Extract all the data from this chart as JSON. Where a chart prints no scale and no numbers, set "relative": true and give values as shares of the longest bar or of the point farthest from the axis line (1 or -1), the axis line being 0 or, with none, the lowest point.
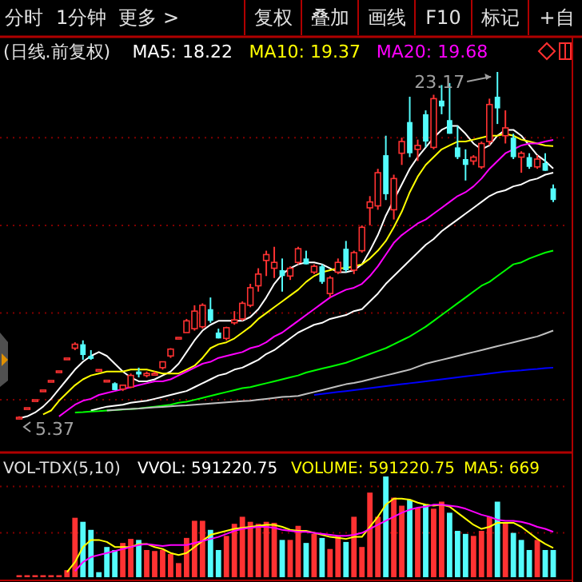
{
  "chart_data": [
    {
      "type": "candlestick",
      "title": "(日线.前复权)",
      "legend": "top left",
      "grid": "y",
      "categories": [
        null,
        null,
        null,
        null,
        null,
        null,
        null,
        null,
        null,
        null,
        null,
        null,
        null,
        null,
        null,
        null,
        null,
        null,
        null,
        null,
        null,
        null,
        null,
        null,
        null,
        null,
        null,
        null,
        null,
        null,
        null,
        null,
        null,
        null,
        null,
        null,
        null,
        null,
        null,
        null,
        null,
        null,
        null,
        null,
        null,
        null,
        null,
        null,
        null,
        null,
        null,
        null,
        null,
        null,
        null,
        null,
        null,
        null,
        null,
        null,
        null,
        null,
        null,
        null,
        null,
        null,
        null,
        null
      ],
      "yticks": [
        {
          "value": 6.35,
          "label": null
        },
        {
          "value": 10.8,
          "label": null
        },
        {
          "value": 15.3,
          "label": null
        },
        {
          "value": 19.8,
          "label": null
        }
      ],
      "ohlc": [
        [
          5.4,
          5.5,
          5.37,
          5.45
        ],
        [
          5.94,
          5.94,
          5.94,
          5.94
        ],
        [
          6.35,
          6.35,
          6.35,
          6.35
        ],
        [
          6.85,
          6.85,
          6.85,
          6.85
        ],
        [
          7.34,
          7.34,
          7.34,
          7.34
        ],
        [
          7.83,
          7.83,
          7.83,
          7.83
        ],
        [
          8.49,
          8.49,
          8.49,
          8.49
        ],
        [
          9.0,
          9.3,
          8.9,
          9.2
        ],
        [
          9.2,
          9.4,
          8.4,
          8.65
        ],
        [
          8.6,
          8.9,
          8.4,
          8.45
        ],
        [
          7.9,
          7.9,
          7.9,
          7.9
        ],
        [
          7.35,
          7.35,
          7.35,
          7.35
        ],
        [
          7.2,
          7.25,
          6.85,
          6.85
        ],
        [
          6.9,
          7.1,
          6.8,
          7.1
        ],
        [
          7.0,
          7.7,
          6.95,
          7.6
        ],
        [
          7.8,
          8.0,
          7.5,
          7.65
        ],
        [
          7.6,
          7.8,
          7.5,
          7.7
        ],
        [
          7.7,
          7.8,
          7.6,
          7.7
        ],
        [
          8.0,
          8.3,
          7.9,
          8.3
        ],
        [
          8.6,
          9.0,
          8.5,
          8.95
        ],
        [
          9.55,
          9.55,
          9.55,
          9.55
        ],
        [
          9.8,
          10.5,
          9.8,
          10.4
        ],
        [
          10.0,
          11.2,
          9.9,
          10.9
        ],
        [
          10.1,
          11.3,
          10.0,
          11.2
        ],
        [
          11.0,
          11.6,
          10.3,
          10.4
        ],
        [
          9.8,
          10.0,
          9.5,
          9.5
        ],
        [
          9.5,
          10.1,
          9.4,
          10.05
        ],
        [
          10.3,
          10.9,
          10.2,
          10.45
        ],
        [
          10.5,
          11.4,
          10.4,
          11.3
        ],
        [
          11.2,
          12.3,
          11.1,
          12.1
        ],
        [
          12.2,
          13.1,
          11.9,
          12.8
        ],
        [
          13.5,
          14.0,
          12.7,
          13.8
        ],
        [
          13.1,
          14.2,
          12.6,
          13.4
        ],
        [
          13.0,
          13.6,
          11.9,
          12.7
        ],
        [
          12.7,
          13.2,
          12.5,
          13.1
        ],
        [
          13.4,
          14.2,
          13.3,
          14.1
        ],
        [
          13.6,
          14.0,
          13.3,
          13.3
        ],
        [
          12.9,
          13.3,
          12.8,
          13.2
        ],
        [
          13.2,
          13.3,
          12.3,
          12.4
        ],
        [
          11.8,
          12.7,
          11.6,
          12.6
        ],
        [
          12.9,
          13.6,
          12.8,
          13.4
        ],
        [
          14.1,
          14.5,
          12.9,
          13.0
        ],
        [
          13.0,
          14.0,
          12.8,
          13.9
        ],
        [
          14.0,
          15.3,
          13.9,
          15.2
        ],
        [
          16.2,
          16.8,
          15.3,
          16.5
        ],
        [
          16.3,
          18.2,
          16.1,
          18.0
        ],
        [
          18.9,
          19.9,
          16.6,
          16.9
        ],
        [
          16.1,
          17.9,
          15.6,
          17.7
        ],
        [
          19.0,
          19.8,
          18.4,
          19.6
        ],
        [
          20.6,
          21.9,
          18.8,
          19.0
        ],
        [
          19.2,
          19.7,
          18.6,
          19.4
        ],
        [
          21.0,
          21.2,
          19.3,
          19.6
        ],
        [
          19.3,
          22.0,
          19.2,
          21.8
        ],
        [
          21.7,
          22.5,
          21.0,
          21.4
        ],
        [
          20.7,
          22.6,
          20.0,
          20.0
        ],
        [
          19.3,
          20.4,
          18.7,
          18.8
        ],
        [
          18.7,
          19.2,
          17.6,
          18.4
        ],
        [
          18.6,
          18.9,
          18.4,
          18.8
        ],
        [
          18.3,
          19.6,
          18.2,
          19.5
        ],
        [
          19.6,
          21.8,
          19.4,
          21.5
        ],
        [
          21.9,
          23.17,
          20.5,
          21.3
        ],
        [
          19.9,
          21.2,
          19.5,
          20.3
        ],
        [
          19.8,
          20.0,
          18.7,
          18.8
        ],
        [
          18.8,
          19.1,
          18.0,
          19.0
        ],
        [
          18.8,
          19.0,
          18.2,
          18.3
        ],
        [
          18.3,
          18.9,
          18.2,
          18.7
        ],
        [
          18.5,
          19.0,
          18.1,
          18.1
        ],
        [
          17.2,
          17.4,
          16.5,
          16.6
        ]
      ],
      "series": [
        {
          "type": "line",
          "name": "MA5: 18.22",
          "color": "#ffffff",
          "values": [
            5.4,
            5.5,
            5.7,
            6.0,
            6.4,
            6.9,
            7.4,
            7.9,
            8.3,
            8.6,
            8.8,
            8.6,
            8.2,
            7.8,
            7.5,
            7.3,
            7.3,
            7.4,
            7.6,
            7.8,
            8.2,
            8.8,
            9.4,
            9.9,
            10.2,
            10.4,
            10.4,
            10.4,
            10.4,
            10.6,
            11.0,
            11.6,
            12.3,
            12.8,
            13.1,
            13.3,
            13.4,
            13.4,
            13.3,
            13.1,
            12.9,
            12.9,
            13.0,
            13.3,
            14.0,
            14.8,
            15.8,
            16.6,
            17.4,
            18.2,
            18.8,
            19.3,
            19.8,
            20.2,
            20.4,
            20.4,
            20.0,
            19.5,
            19.2,
            19.4,
            19.9,
            20.2,
            20.2,
            19.9,
            19.4,
            18.9,
            18.6,
            18.22
          ]
        },
        {
          "type": "line",
          "name": "MA10: 19.37",
          "color": "#ffff00",
          "values": [
            null,
            null,
            null,
            5.6,
            5.8,
            6.3,
            6.7,
            7.1,
            7.4,
            7.6,
            7.7,
            7.8,
            7.8,
            7.8,
            7.9,
            7.9,
            7.9,
            7.8,
            7.7,
            7.7,
            7.7,
            7.9,
            8.1,
            8.5,
            9.0,
            9.2,
            9.3,
            9.5,
            9.8,
            10.1,
            10.5,
            10.8,
            11.1,
            11.4,
            11.7,
            12.0,
            12.4,
            12.7,
            12.9,
            13.0,
            13.1,
            13.1,
            13.2,
            13.3,
            13.6,
            14.0,
            14.5,
            15.2,
            16.0,
            17.0,
            17.8,
            18.4,
            18.8,
            19.2,
            19.4,
            19.6,
            19.6,
            19.7,
            19.8,
            19.9,
            19.9,
            20.0,
            19.9,
            19.7,
            19.6,
            19.5,
            19.4,
            19.37
          ]
        },
        {
          "type": "line",
          "name": "MA20: 19.68",
          "color": "#ff00ff",
          "values": [
            null,
            null,
            null,
            null,
            null,
            5.5,
            5.8,
            6.1,
            6.3,
            6.4,
            6.6,
            6.7,
            6.8,
            6.9,
            7.0,
            7.1,
            7.2,
            7.3,
            7.3,
            7.4,
            7.6,
            7.8,
            8.0,
            8.2,
            8.3,
            8.5,
            8.6,
            8.7,
            8.8,
            9.0,
            9.1,
            9.3,
            9.6,
            9.8,
            10.1,
            10.4,
            10.7,
            11.0,
            11.3,
            11.6,
            11.8,
            12.0,
            12.1,
            12.3,
            12.7,
            13.2,
            13.8,
            14.4,
            14.8,
            15.1,
            15.4,
            15.6,
            15.9,
            16.2,
            16.5,
            16.8,
            17.0,
            17.3,
            17.7,
            18.2,
            18.6,
            19.0,
            19.2,
            19.4,
            19.5,
            19.5,
            19.6,
            19.68
          ]
        },
        {
          "type": "line",
          "color": "#ffffff",
          "values": [
            null,
            null,
            null,
            null,
            null,
            null,
            null,
            null,
            null,
            5.8,
            5.9,
            6.0,
            6.05,
            6.1,
            6.2,
            6.25,
            6.3,
            6.4,
            6.5,
            6.6,
            6.7,
            6.8,
            7.0,
            7.2,
            7.4,
            7.6,
            7.7,
            7.9,
            8.0,
            8.2,
            8.4,
            8.7,
            8.9,
            9.2,
            9.5,
            9.8,
            10.0,
            10.2,
            10.3,
            10.5,
            10.6,
            10.7,
            10.9,
            11.0,
            11.4,
            11.8,
            12.3,
            12.7,
            13.1,
            13.5,
            13.9,
            14.3,
            14.6,
            15.0,
            15.3,
            15.6,
            15.9,
            16.2,
            16.5,
            16.8,
            17.0,
            17.1,
            17.3,
            17.4,
            17.6,
            17.7,
            17.9,
            18.0
          ]
        },
        {
          "type": "line",
          "color": "#00ff00",
          "values": [
            null,
            null,
            null,
            null,
            null,
            null,
            null,
            5.7,
            5.72,
            5.75,
            5.77,
            5.8,
            5.82,
            5.85,
            5.87,
            5.9,
            5.95,
            6.0,
            6.05,
            6.1,
            6.2,
            6.25,
            6.35,
            6.45,
            6.55,
            6.65,
            6.75,
            6.85,
            6.95,
            7.0,
            7.1,
            7.2,
            7.3,
            7.4,
            7.5,
            7.6,
            7.75,
            7.85,
            7.95,
            8.05,
            8.15,
            8.25,
            8.4,
            8.55,
            8.7,
            8.85,
            9.0,
            9.2,
            9.4,
            9.6,
            9.85,
            10.1,
            10.4,
            10.7,
            11.0,
            11.3,
            11.6,
            11.9,
            12.2,
            12.4,
            12.7,
            13.0,
            13.3,
            13.4,
            13.6,
            13.75,
            13.9,
            14.0
          ]
        },
        {
          "type": "line",
          "color": "#c0c0c0",
          "values": [
            null,
            null,
            null,
            null,
            null,
            null,
            null,
            null,
            null,
            null,
            null,
            5.8,
            5.83,
            5.86,
            5.88,
            5.9,
            5.93,
            5.96,
            5.99,
            6.02,
            6.05,
            6.07,
            6.1,
            6.13,
            6.16,
            6.19,
            6.22,
            6.25,
            6.28,
            6.3,
            6.35,
            6.4,
            6.45,
            6.5,
            6.52,
            6.55,
            6.65,
            6.75,
            6.85,
            6.95,
            7.05,
            7.15,
            7.22,
            7.3,
            7.4,
            7.5,
            7.6,
            7.7,
            7.8,
            7.9,
            8.05,
            8.2,
            8.3,
            8.4,
            8.5,
            8.6,
            8.7,
            8.8,
            8.9,
            9.0,
            9.1,
            9.2,
            9.3,
            9.4,
            9.5,
            9.6,
            9.75,
            9.9
          ]
        },
        {
          "type": "line",
          "color": "#0000ff",
          "values": [
            null,
            null,
            null,
            null,
            null,
            null,
            null,
            null,
            null,
            null,
            null,
            null,
            null,
            null,
            null,
            null,
            null,
            null,
            null,
            null,
            null,
            null,
            null,
            null,
            null,
            null,
            null,
            null,
            null,
            null,
            null,
            null,
            null,
            null,
            null,
            null,
            null,
            6.6,
            6.65,
            6.7,
            6.75,
            6.8,
            6.85,
            6.9,
            6.95,
            7.0,
            7.05,
            7.1,
            7.15,
            7.2,
            7.25,
            7.3,
            7.35,
            7.4,
            7.45,
            7.5,
            7.55,
            7.6,
            7.65,
            7.7,
            7.75,
            7.8,
            7.83,
            7.86,
            7.9,
            7.93,
            7.97,
            8.0
          ]
        }
      ],
      "annotations": [
        "分时",
        "1分钟",
        "更多 >",
        "复权",
        "叠加",
        "画线",
        "F10",
        "标记",
        "+自",
        "23.17",
        "5.37"
      ]
    },
    {
      "type": "bar",
      "relative": true,
      "title": "VOL-TDX(5,10)",
      "categories": [
        null,
        null,
        null,
        null,
        null,
        null,
        null,
        null,
        null,
        null,
        null,
        null,
        null,
        null,
        null,
        null,
        null,
        null,
        null,
        null,
        null,
        null,
        null,
        null,
        null,
        null,
        null,
        null,
        null,
        null,
        null,
        null,
        null,
        null,
        null,
        null,
        null,
        null,
        null,
        null,
        null,
        null,
        null,
        null,
        null,
        null,
        null,
        null,
        null,
        null,
        null,
        null,
        null,
        null,
        null,
        null,
        null,
        null,
        null,
        null,
        null,
        null,
        null,
        null,
        null,
        null,
        null,
        null
      ],
      "ref_lines": [
        {
          "axis": "y",
          "value": 0.44,
          "color": "#800000",
          "line_style": "dotted"
        },
        {
          "axis": "y",
          "value": 0.9,
          "color": "#800000",
          "line_style": "dotted"
        }
      ],
      "series": [
        {
          "type": "bar",
          "values": [
            0.02,
            0.02,
            0.02,
            0.02,
            0.02,
            0.02,
            0.07,
            0.59,
            0.55,
            0.47,
            0.05,
            0.3,
            0.27,
            0.34,
            0.38,
            0.37,
            0.27,
            0.26,
            0.27,
            0.23,
            0.14,
            0.39,
            0.56,
            0.56,
            0.47,
            0.27,
            0.41,
            0.53,
            0.6,
            0.55,
            0.53,
            0.55,
            0.54,
            0.37,
            0.37,
            0.51,
            0.34,
            0.43,
            0.39,
            0.28,
            0.41,
            0.35,
            0.6,
            0.3,
            0.84,
            0.6,
            1,
            0.79,
            0.71,
            0.77,
            0.69,
            0.72,
            0.68,
            0.75,
            0.64,
            0.46,
            0.43,
            0.41,
            0.46,
            0.6,
            0.75,
            0.54,
            0.44,
            0.37,
            0.27,
            0.37,
            0.27,
            0.27
          ],
          "colors": [
            "#ff3232",
            "#ff3232",
            "#ff3232",
            "#ff3232",
            "#ff3232",
            "#ff3232",
            "#ff3232",
            "#ff3232",
            "#54fcfc",
            "#54fcfc",
            "#54fcfc",
            "#54fcfc",
            "#54fcfc",
            "#ff3232",
            "#ff3232",
            "#54fcfc",
            "#ff3232",
            "#ff3232",
            "#ff3232",
            "#ff3232",
            "#ff3232",
            "#ff3232",
            "#ff3232",
            "#ff3232",
            "#54fcfc",
            "#54fcfc",
            "#ff3232",
            "#ff3232",
            "#ff3232",
            "#ff3232",
            "#ff3232",
            "#ff3232",
            "#ff3232",
            "#54fcfc",
            "#ff3232",
            "#ff3232",
            "#54fcfc",
            "#ff3232",
            "#54fcfc",
            "#ff3232",
            "#ff3232",
            "#54fcfc",
            "#ff3232",
            "#ff3232",
            "#ff3232",
            "#ff3232",
            "#54fcfc",
            "#ff3232",
            "#ff3232",
            "#54fcfc",
            "#ff3232",
            "#54fcfc",
            "#ff3232",
            "#ff3232",
            "#54fcfc",
            "#54fcfc",
            "#54fcfc",
            "#ff3232",
            "#ff3232",
            "#ff3232",
            "#54fcfc",
            "#ff3232",
            "#54fcfc",
            "#54fcfc",
            "#54fcfc",
            "#ff3232",
            "#54fcfc",
            "#54fcfc"
          ]
        },
        {
          "type": "line",
          "color": "#ffff00",
          "values": [
            null,
            null,
            null,
            null,
            null,
            null,
            0.05,
            0.15,
            0.3,
            0.37,
            0.37,
            0.35,
            0.3,
            0.3,
            0.3,
            0.33,
            0.33,
            0.3,
            0.28,
            0.24,
            0.22,
            0.24,
            0.3,
            0.36,
            0.42,
            0.44,
            0.46,
            0.48,
            0.49,
            0.5,
            0.51,
            0.52,
            0.52,
            0.5,
            0.47,
            0.46,
            0.46,
            0.44,
            0.42,
            0.4,
            0.39,
            0.38,
            0.4,
            0.4,
            0.5,
            0.6,
            0.72,
            0.78,
            0.78,
            0.77,
            0.74,
            0.72,
            0.71,
            0.72,
            0.7,
            0.64,
            0.58,
            0.52,
            0.48,
            0.5,
            0.54,
            0.54,
            0.54,
            0.5,
            0.44,
            0.38,
            0.33,
            0.29
          ]
        },
        {
          "type": "line",
          "color": "#ff00ff",
          "values": [
            null,
            null,
            null,
            null,
            null,
            null,
            null,
            0.06,
            0.15,
            0.2,
            0.22,
            0.24,
            0.26,
            0.28,
            0.3,
            0.32,
            0.33,
            0.32,
            0.31,
            0.32,
            0.32,
            0.32,
            0.34,
            0.36,
            0.38,
            0.4,
            0.43,
            0.46,
            0.48,
            0.49,
            0.5,
            0.5,
            0.49,
            0.47,
            0.46,
            0.45,
            0.45,
            0.44,
            0.43,
            0.42,
            0.41,
            0.41,
            0.42,
            0.44,
            0.48,
            0.52,
            0.56,
            0.6,
            0.64,
            0.67,
            0.69,
            0.7,
            0.72,
            0.72,
            0.71,
            0.7,
            0.68,
            0.65,
            0.62,
            0.6,
            0.57,
            0.56,
            0.56,
            0.55,
            0.53,
            0.5,
            0.48,
            0.45
          ]
        }
      ],
      "annotations": [
        "VVOL: 591220.75",
        "VOLUME: 591220.75",
        "MA5: 669"
      ]
    }
  ]
}
